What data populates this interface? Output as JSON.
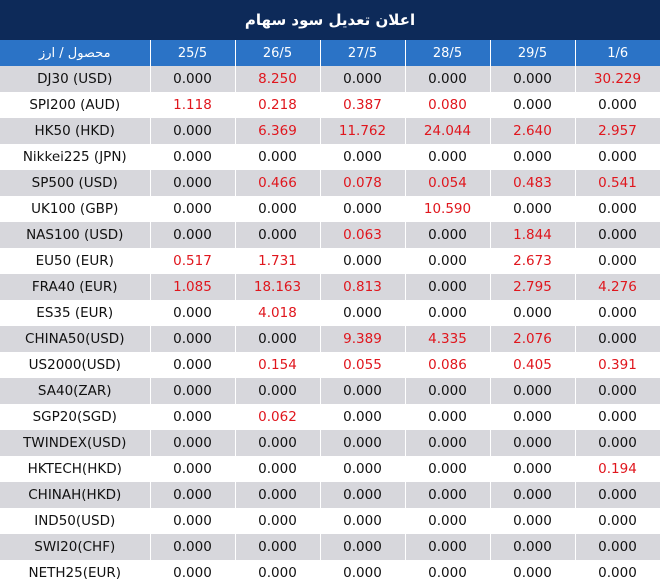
{
  "title": "اعلان تعديل سود سهام",
  "header": {
    "first_col": "محصول / ارز",
    "dates": [
      "25/5",
      "26/5",
      "27/5",
      "28/5",
      "29/5",
      "1/6"
    ]
  },
  "colors": {
    "title_bg": "#0d2a59",
    "header_bg": "#2b73c6",
    "nonzero": "#e0161d",
    "stripe": "#d7d7dc"
  },
  "rows": [
    {
      "symbol": "DJ30 (USD)",
      "values": [
        "0.000",
        "8.250",
        "0.000",
        "0.000",
        "0.000",
        "30.229"
      ]
    },
    {
      "symbol": "SPI200 (AUD)",
      "values": [
        "1.118",
        "0.218",
        "0.387",
        "0.080",
        "0.000",
        "0.000"
      ]
    },
    {
      "symbol": "HK50 (HKD)",
      "values": [
        "0.000",
        "6.369",
        "11.762",
        "24.044",
        "2.640",
        "2.957"
      ]
    },
    {
      "symbol": "Nikkei225 (JPN)",
      "values": [
        "0.000",
        "0.000",
        "0.000",
        "0.000",
        "0.000",
        "0.000"
      ]
    },
    {
      "symbol": "SP500 (USD)",
      "values": [
        "0.000",
        "0.466",
        "0.078",
        "0.054",
        "0.483",
        "0.541"
      ]
    },
    {
      "symbol": "UK100 (GBP)",
      "values": [
        "0.000",
        "0.000",
        "0.000",
        "10.590",
        "0.000",
        "0.000"
      ]
    },
    {
      "symbol": "NAS100 (USD)",
      "values": [
        "0.000",
        "0.000",
        "0.063",
        "0.000",
        "1.844",
        "0.000"
      ]
    },
    {
      "symbol": "EU50 (EUR)",
      "values": [
        "0.517",
        "1.731",
        "0.000",
        "0.000",
        "2.673",
        "0.000"
      ]
    },
    {
      "symbol": "FRA40 (EUR)",
      "values": [
        "1.085",
        "18.163",
        "0.813",
        "0.000",
        "2.795",
        "4.276"
      ]
    },
    {
      "symbol": "ES35 (EUR)",
      "values": [
        "0.000",
        "4.018",
        "0.000",
        "0.000",
        "0.000",
        "0.000"
      ]
    },
    {
      "symbol": "CHINA50(USD)",
      "values": [
        "0.000",
        "0.000",
        "9.389",
        "4.335",
        "2.076",
        "0.000"
      ]
    },
    {
      "symbol": "US2000(USD)",
      "values": [
        "0.000",
        "0.154",
        "0.055",
        "0.086",
        "0.405",
        "0.391"
      ]
    },
    {
      "symbol": "SA40(ZAR)",
      "values": [
        "0.000",
        "0.000",
        "0.000",
        "0.000",
        "0.000",
        "0.000"
      ]
    },
    {
      "symbol": "SGP20(SGD)",
      "values": [
        "0.000",
        "0.062",
        "0.000",
        "0.000",
        "0.000",
        "0.000"
      ]
    },
    {
      "symbol": "TWINDEX(USD)",
      "values": [
        "0.000",
        "0.000",
        "0.000",
        "0.000",
        "0.000",
        "0.000"
      ]
    },
    {
      "symbol": "HKTECH(HKD)",
      "values": [
        "0.000",
        "0.000",
        "0.000",
        "0.000",
        "0.000",
        "0.194"
      ]
    },
    {
      "symbol": "CHINAH(HKD)",
      "values": [
        "0.000",
        "0.000",
        "0.000",
        "0.000",
        "0.000",
        "0.000"
      ]
    },
    {
      "symbol": "IND50(USD)",
      "values": [
        "0.000",
        "0.000",
        "0.000",
        "0.000",
        "0.000",
        "0.000"
      ]
    },
    {
      "symbol": "SWI20(CHF)",
      "values": [
        "0.000",
        "0.000",
        "0.000",
        "0.000",
        "0.000",
        "0.000"
      ]
    },
    {
      "symbol": "NETH25(EUR)",
      "values": [
        "0.000",
        "0.000",
        "0.000",
        "0.000",
        "0.000",
        "0.000"
      ]
    }
  ]
}
